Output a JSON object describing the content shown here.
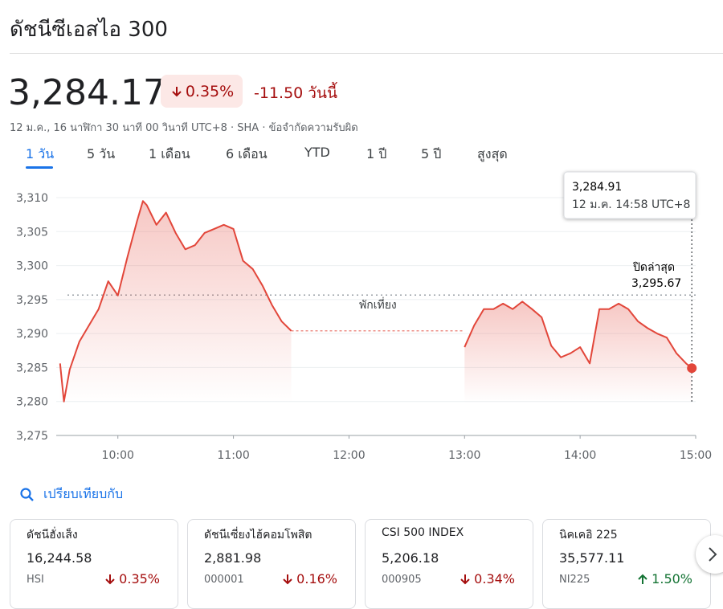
{
  "header": {
    "title": "ดัชนีซีเอสไอ 300",
    "price": "3,284.17",
    "change_pct": "0.35%",
    "change_abs": "-11.50 วันนี้",
    "meta": "12 ม.ค., 16 นาฬิกา 30 นาที 00 วินาที UTC+8 · SHA · ข้อจำกัดความรับผิด"
  },
  "tabs": [
    "1 วัน",
    "5 วัน",
    "1 เดือน",
    "6 เดือน",
    "YTD",
    "1 ปี",
    "5 ปี",
    "สูงสุด"
  ],
  "chart_data": {
    "type": "line",
    "color": "#e2463a",
    "x": [
      570,
      572,
      575,
      580,
      585,
      590,
      595,
      600,
      605,
      610,
      613,
      615,
      620,
      625,
      630,
      635,
      640,
      645,
      650,
      655,
      660,
      665,
      670,
      675,
      680,
      685,
      690,
      720,
      780,
      785,
      790,
      795,
      800,
      805,
      810,
      815,
      820,
      825,
      830,
      835,
      840,
      845,
      850,
      855,
      860,
      865,
      870,
      875,
      880,
      885,
      890,
      895,
      898
    ],
    "values": [
      3285.6,
      3280,
      3284.7,
      3288.8,
      3291.2,
      3293.6,
      3297.7,
      3295.6,
      3301.3,
      3306.6,
      3309.5,
      3308.9,
      3306,
      3307.8,
      3304.8,
      3302.4,
      3303,
      3304.8,
      3305.4,
      3306,
      3305.4,
      3300.7,
      3299.5,
      3297.1,
      3294.2,
      3291.8,
      3290.4,
      null,
      3288,
      3291.2,
      3293.6,
      3293.6,
      3294.4,
      3293.6,
      3294.7,
      3293.6,
      3292.4,
      3288.2,
      3286.5,
      3287.1,
      3288,
      3285.6,
      3293.6,
      3293.6,
      3294.4,
      3293.6,
      3291.8,
      3290.8,
      3290,
      3289.4,
      3287.1,
      3285.6,
      3284.91
    ],
    "xlim": [
      568,
      900
    ],
    "ylim": [
      3275,
      3310
    ],
    "xticks": [
      {
        "value": 600,
        "label": "10:00"
      },
      {
        "value": 660,
        "label": "11:00"
      },
      {
        "value": 720,
        "label": "12:00"
      },
      {
        "value": 780,
        "label": "13:00"
      },
      {
        "value": 840,
        "label": "14:00"
      },
      {
        "value": 900,
        "label": "15:00"
      }
    ],
    "yticks": [
      {
        "value": 3275,
        "label": "3,275"
      },
      {
        "value": 3280,
        "label": "3,280"
      },
      {
        "value": 3285,
        "label": "3,285"
      },
      {
        "value": 3290,
        "label": "3,290"
      },
      {
        "value": 3295,
        "label": "3,295"
      },
      {
        "value": 3300,
        "label": "3,300"
      },
      {
        "value": 3305,
        "label": "3,305"
      },
      {
        "value": 3310,
        "label": "3,310"
      }
    ],
    "grid": true,
    "previous_close": {
      "label": "ปิดล่าสุด",
      "value": 3295.67,
      "value_label": "3,295.67"
    },
    "lunch_label": "พักเที่ยง",
    "tooltip": {
      "value": "3,284.91",
      "time": "12 ม.ค. 14:58 UTC+8"
    }
  },
  "compare": {
    "title": "เปรียบเทียบกับ",
    "cards": [
      {
        "name": "ดัชนีฮั่งเส็ง",
        "price": "16,244.58",
        "symbol": "HSI",
        "change": "0.35%",
        "direction": "down"
      },
      {
        "name": "ดัชนีเซี่ยงไฮ้คอมโพสิต",
        "price": "2,881.98",
        "symbol": "000001",
        "change": "0.16%",
        "direction": "down"
      },
      {
        "name": "CSI 500 INDEX",
        "price": "5,206.18",
        "symbol": "000905",
        "change": "0.34%",
        "direction": "down"
      },
      {
        "name": "นิคเคอิ 225",
        "price": "35,577.11",
        "symbol": "NI225",
        "change": "1.50%",
        "direction": "up"
      }
    ]
  }
}
